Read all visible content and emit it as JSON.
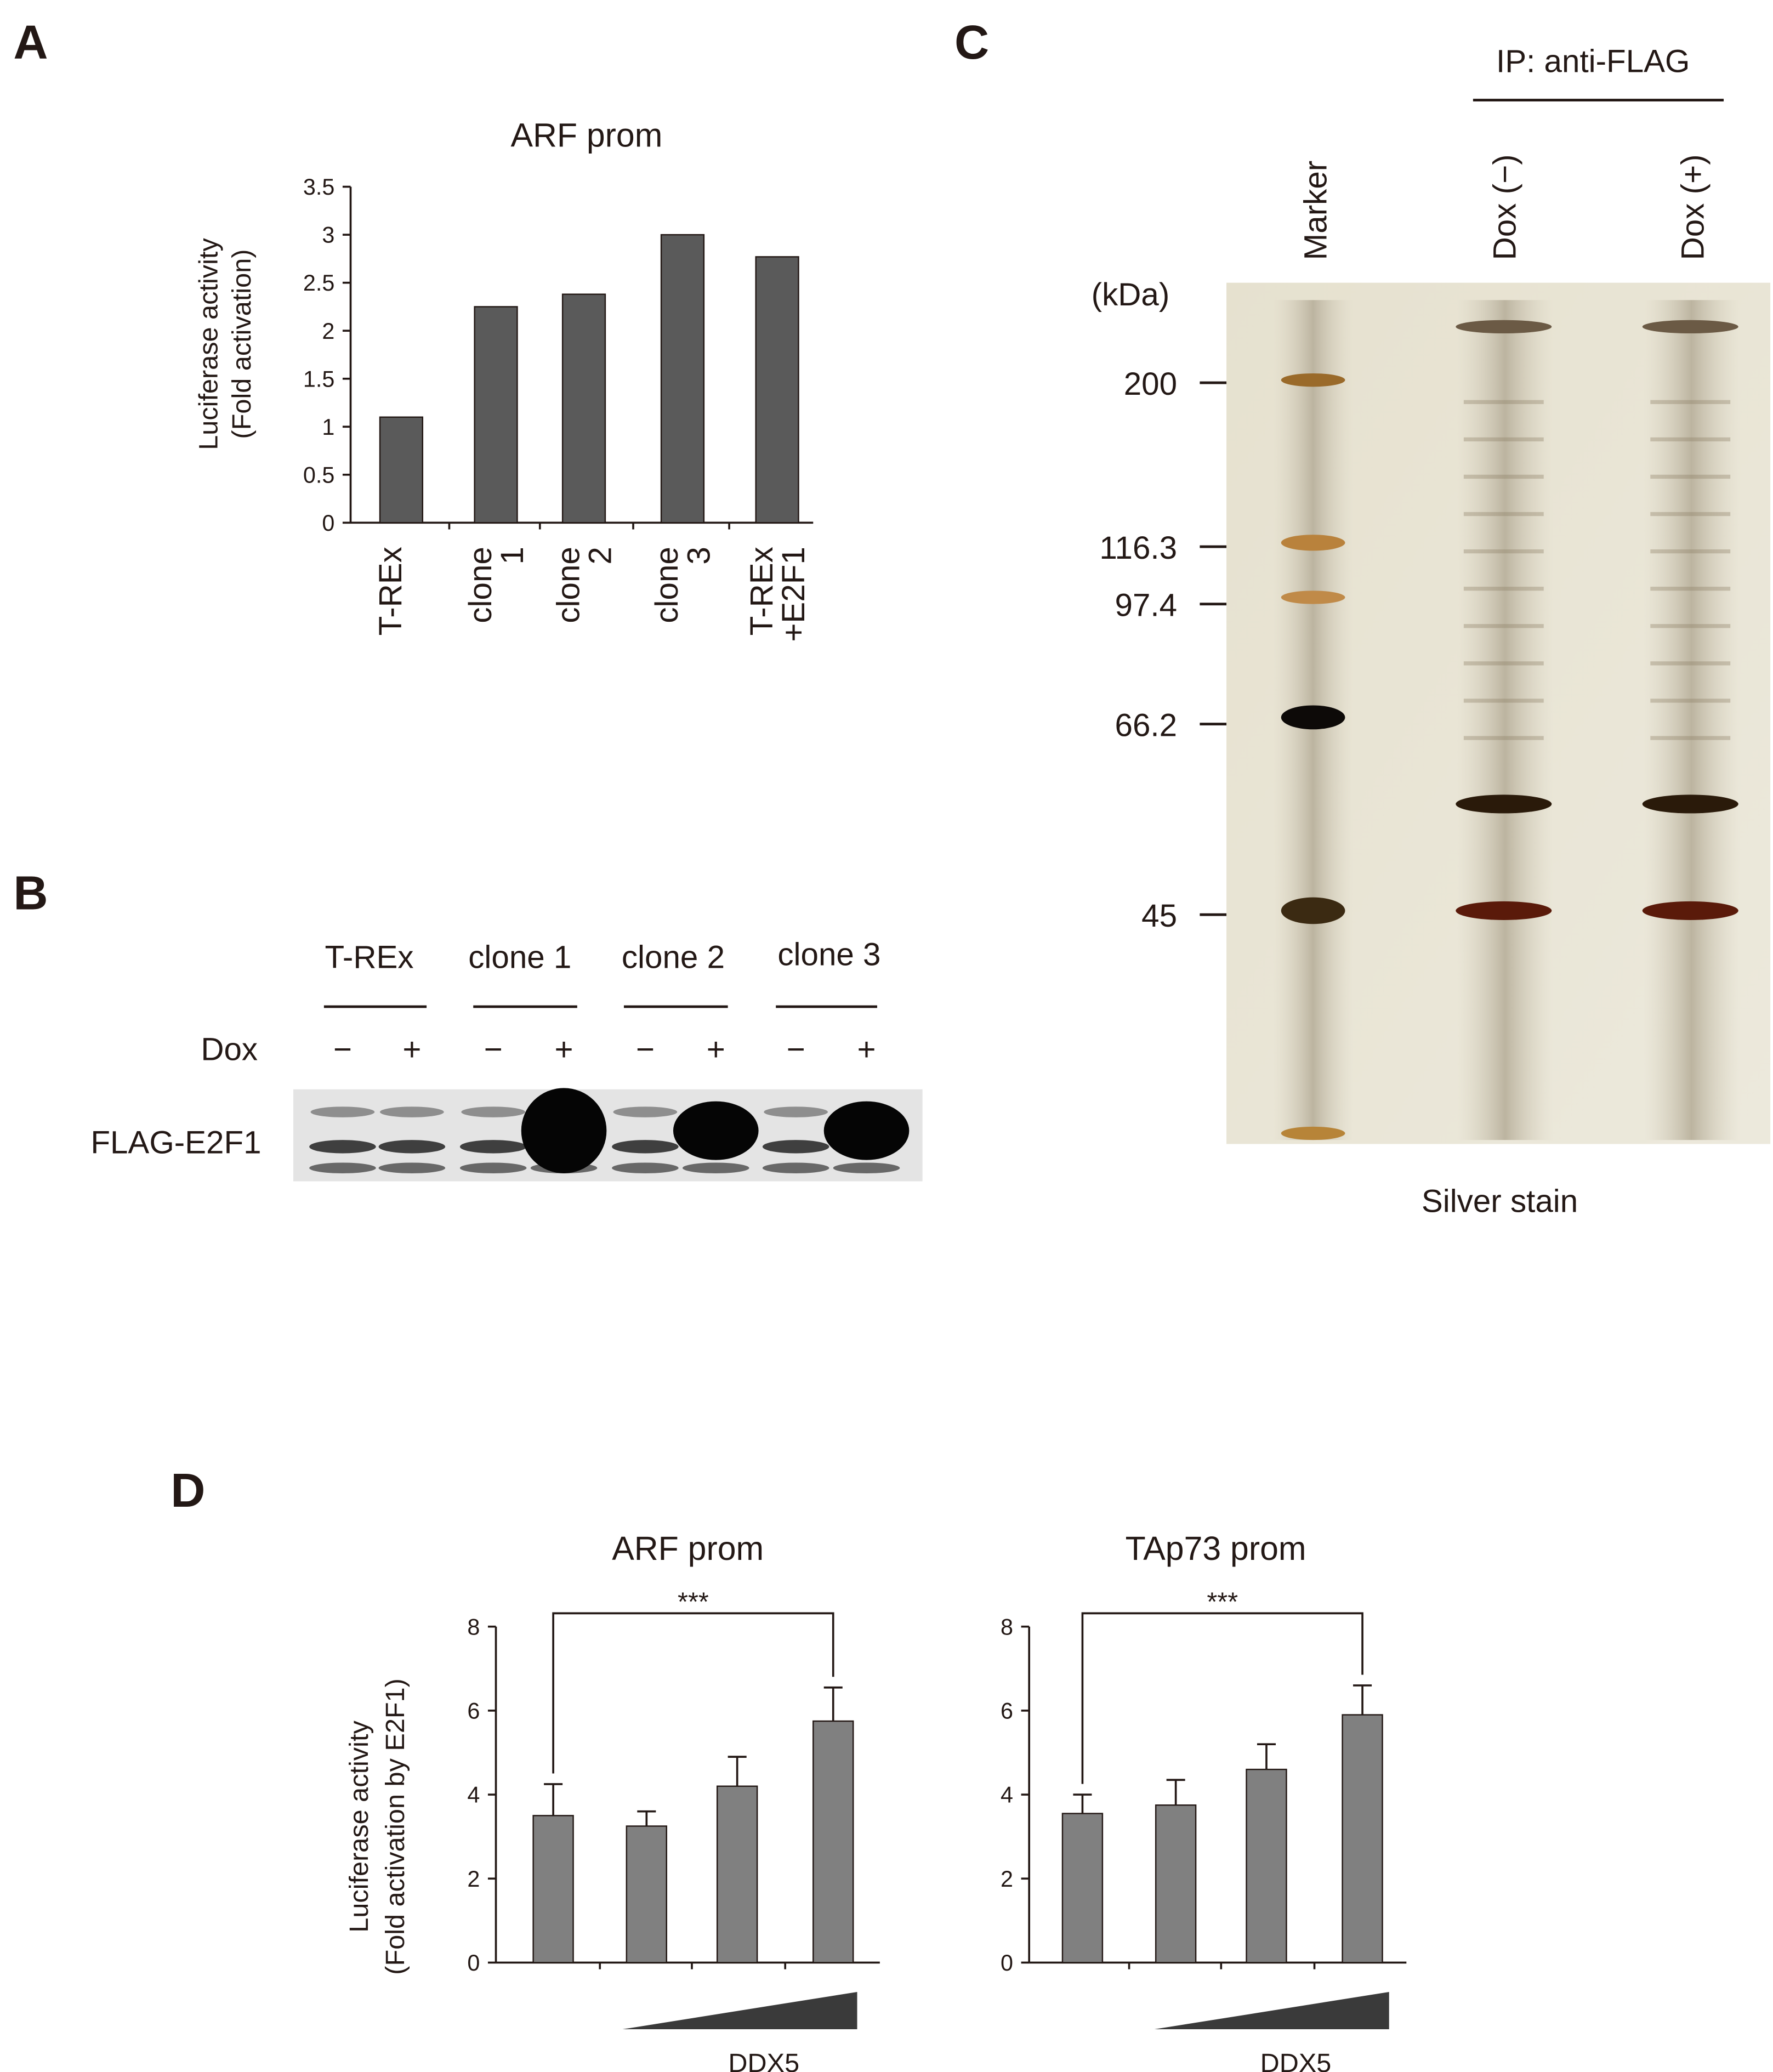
{
  "panel_labels": [
    "A",
    "B",
    "C",
    "D"
  ],
  "chart_data": [
    {
      "type": "bar",
      "title": "ARF prom",
      "y_label": [
        "Luciferase activity",
        "(Fold activation)"
      ],
      "categories": [
        "T-REx",
        "clone 1",
        "clone 2",
        "clone 3",
        "T-REx +E2F1"
      ],
      "values": [
        1.1,
        2.25,
        2.38,
        3.0,
        2.77
      ],
      "color": "#5a5a5a",
      "ylim": [
        0,
        3.5
      ],
      "yticks": [
        0,
        0.5,
        1,
        1.5,
        2,
        2.5,
        3,
        3.5
      ]
    },
    {
      "type": "bar",
      "title": "ARF prom",
      "y_label": [
        "Luciferase activity",
        "(Fold activation by E2F1)"
      ],
      "values": [
        3.5,
        3.25,
        4.2,
        5.75
      ],
      "errors": [
        0.75,
        0.35,
        0.7,
        0.8
      ],
      "color": "#808080",
      "ylim": [
        0,
        8
      ],
      "yticks": [
        0,
        2,
        4,
        6,
        8
      ],
      "annotation": "***",
      "x_label": "DDX5"
    },
    {
      "type": "bar",
      "title": "TAp73 prom",
      "values": [
        3.55,
        3.75,
        4.6,
        5.9
      ],
      "errors": [
        0.45,
        0.6,
        0.6,
        0.7
      ],
      "color": "#808080",
      "ylim": [
        0,
        8
      ],
      "yticks": [
        0,
        2,
        4,
        6,
        8
      ],
      "annotation": "***",
      "x_label": "DDX5"
    }
  ],
  "blot": {
    "groups": [
      "T-REx",
      "clone 1",
      "clone 2",
      "clone 3"
    ],
    "row_label": "Dox",
    "signs": [
      "−",
      "+",
      "−",
      "+",
      "−",
      "+",
      "−",
      "+"
    ],
    "band_label": "FLAG-E2F1"
  },
  "gel": {
    "header": "IP: anti-FLAG",
    "lanes": [
      "Marker",
      "Dox (−)",
      "Dox (+)"
    ],
    "unit": "(kDa)",
    "markers": [
      "200",
      "116.3",
      "97.4",
      "66.2",
      "45"
    ],
    "caption": "Silver stain"
  }
}
